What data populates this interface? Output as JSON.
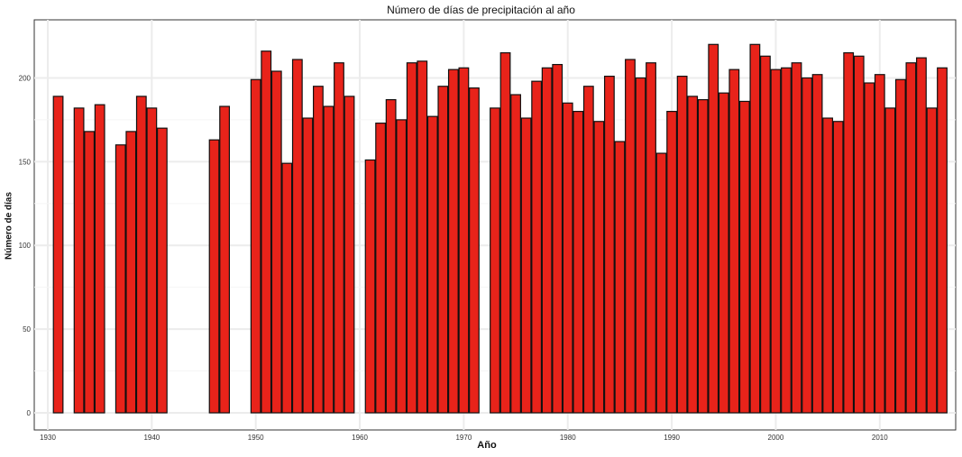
{
  "chart_data": {
    "type": "bar",
    "title": "Número de días de precipitación al año",
    "xlabel": "Año",
    "ylabel": "Número de días",
    "xlim": [
      1930,
      2016
    ],
    "ylim": [
      0,
      232
    ],
    "x_ticks": [
      "1930",
      "1940",
      "1950",
      "1960",
      "1970",
      "1980",
      "1990",
      "2000",
      "2010"
    ],
    "y_ticks": [
      "0",
      "50",
      "100",
      "150",
      "200"
    ],
    "bar_color": "#e8231a",
    "bar_edge": "#111111",
    "grid": true,
    "x": [
      1931,
      1933,
      1934,
      1935,
      1937,
      1938,
      1939,
      1940,
      1941,
      1946,
      1947,
      1950,
      1951,
      1952,
      1953,
      1954,
      1955,
      1956,
      1957,
      1958,
      1959,
      1961,
      1962,
      1963,
      1964,
      1965,
      1966,
      1967,
      1968,
      1969,
      1970,
      1971,
      1973,
      1974,
      1975,
      1976,
      1977,
      1978,
      1979,
      1980,
      1981,
      1982,
      1983,
      1984,
      1985,
      1986,
      1987,
      1988,
      1989,
      1990,
      1991,
      1992,
      1993,
      1994,
      1995,
      1996,
      1997,
      1998,
      1999,
      2000,
      2001,
      2002,
      2003,
      2004,
      2005,
      2006,
      2007,
      2008,
      2009,
      2010,
      2011,
      2012,
      2013,
      2014,
      2015,
      2016
    ],
    "values": [
      189,
      182,
      168,
      184,
      160,
      168,
      189,
      182,
      170,
      163,
      183,
      199,
      216,
      204,
      149,
      211,
      176,
      195,
      183,
      209,
      189,
      151,
      173,
      187,
      175,
      209,
      210,
      177,
      195,
      205,
      206,
      194,
      182,
      215,
      190,
      176,
      198,
      206,
      208,
      185,
      180,
      195,
      174,
      201,
      162,
      211,
      200,
      209,
      155,
      180,
      201,
      189,
      187,
      220,
      191,
      205,
      186,
      220,
      213,
      205,
      206,
      209,
      200,
      202,
      176,
      174,
      215,
      213,
      197,
      202,
      182,
      199,
      209,
      212,
      182,
      206
    ]
  }
}
